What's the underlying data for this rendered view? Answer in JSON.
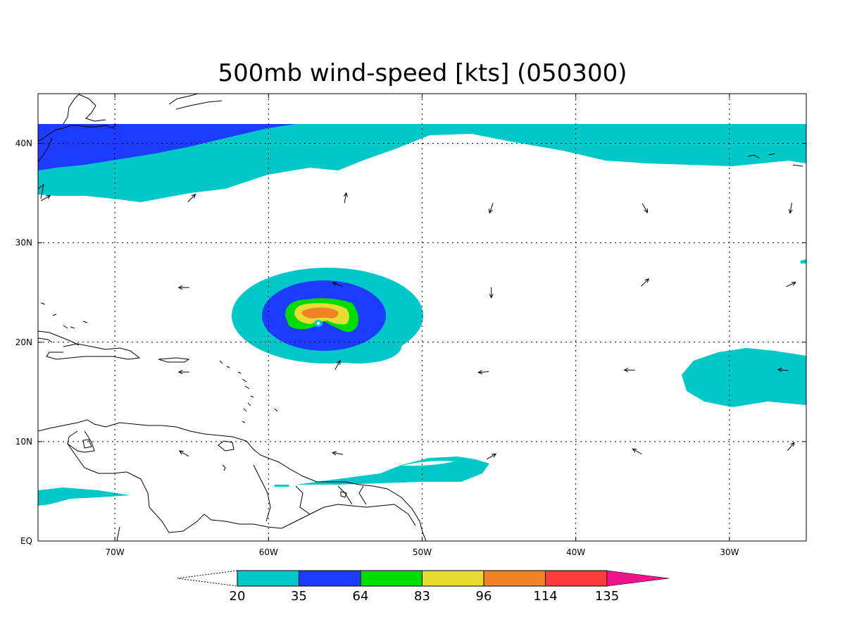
{
  "title": "500mb wind-speed [kts] (050300)",
  "map": {
    "lon_range": [
      -75,
      -25
    ],
    "lat_range": [
      0,
      45
    ],
    "lon_ticks": [
      {
        "value": -70,
        "label": "70W"
      },
      {
        "value": -60,
        "label": "60W"
      },
      {
        "value": -50,
        "label": "50W"
      },
      {
        "value": -40,
        "label": "40W"
      },
      {
        "value": -30,
        "label": "30W"
      }
    ],
    "lat_ticks": [
      {
        "value": 0,
        "label": "EQ"
      },
      {
        "value": 10,
        "label": "10N"
      },
      {
        "value": 20,
        "label": "20N"
      },
      {
        "value": 30,
        "label": "30N"
      },
      {
        "value": 40,
        "label": "40N"
      }
    ],
    "grid": true
  },
  "colorbar": {
    "levels": [
      "20",
      "35",
      "64",
      "83",
      "96",
      "114",
      "135"
    ],
    "colors": [
      "#00c8c8",
      "#1e3cff",
      "#00dc00",
      "#e6dc32",
      "#f08228",
      "#fa3c3c",
      "#f0148c"
    ]
  },
  "wind_vectors": [
    {
      "lon": -74.5,
      "lat": 34.5,
      "dir_deg": 60
    },
    {
      "lon": -65,
      "lat": 34.5,
      "dir_deg": 45
    },
    {
      "lon": -55,
      "lat": 34.5,
      "dir_deg": 10
    },
    {
      "lon": -45.5,
      "lat": 33.5,
      "dir_deg": 200
    },
    {
      "lon": -35.5,
      "lat": 33.5,
      "dir_deg": 150
    },
    {
      "lon": -26,
      "lat": 33.5,
      "dir_deg": 190
    },
    {
      "lon": -65.5,
      "lat": 25.5,
      "dir_deg": 270
    },
    {
      "lon": -55.5,
      "lat": 25.8,
      "dir_deg": 290
    },
    {
      "lon": -45.5,
      "lat": 25,
      "dir_deg": 180
    },
    {
      "lon": -35.5,
      "lat": 26,
      "dir_deg": 45
    },
    {
      "lon": -26,
      "lat": 25.8,
      "dir_deg": 65
    },
    {
      "lon": -65.5,
      "lat": 17,
      "dir_deg": 270
    },
    {
      "lon": -55.5,
      "lat": 17.7,
      "dir_deg": 30
    },
    {
      "lon": -46,
      "lat": 17,
      "dir_deg": 265
    },
    {
      "lon": -36.5,
      "lat": 17.2,
      "dir_deg": 270
    },
    {
      "lon": -26.5,
      "lat": 17.2,
      "dir_deg": 275
    },
    {
      "lon": -65.5,
      "lat": 8.8,
      "dir_deg": 300
    },
    {
      "lon": -55.5,
      "lat": 8.8,
      "dir_deg": 280
    },
    {
      "lon": -45.5,
      "lat": 8.5,
      "dir_deg": 60
    },
    {
      "lon": -36,
      "lat": 9,
      "dir_deg": 300
    },
    {
      "lon": -26,
      "lat": 9.5,
      "dir_deg": 40
    }
  ]
}
